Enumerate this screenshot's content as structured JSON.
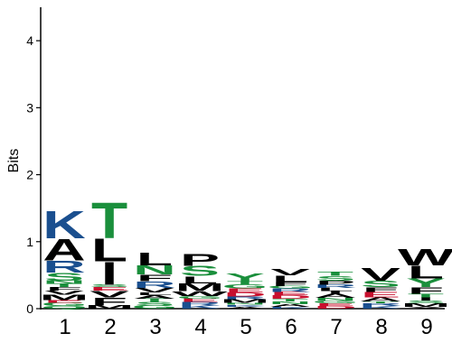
{
  "chart_data": {
    "type": "sequence-logo",
    "ylabel": "Bits",
    "ylim": [
      0,
      4.5
    ],
    "yticks": [
      0,
      1,
      2,
      3,
      4
    ],
    "positions": [
      "1",
      "2",
      "3",
      "4",
      "5",
      "6",
      "7",
      "8",
      "9"
    ],
    "colors": {
      "K": "#1a4f8f",
      "R": "#1a4f8f",
      "H": "#1a4f8f",
      "S": "#1a8f3c",
      "T": "#1a8f3c",
      "N": "#1a8f3c",
      "Q": "#1a8f3c",
      "G": "#1a8f3c",
      "C": "#1a8f3c",
      "Y": "#1a8f3c",
      "D": "#c8102e",
      "E": "#c8102e",
      "A": "#000000",
      "L": "#000000",
      "I": "#000000",
      "V": "#000000",
      "M": "#000000",
      "F": "#000000",
      "W": "#000000",
      "P": "#000000"
    },
    "stacks": [
      [
        {
          "letter": "Q",
          "bits": 0.04
        },
        {
          "letter": "G",
          "bits": 0.05
        },
        {
          "letter": "E",
          "bits": 0.04
        },
        {
          "letter": "M",
          "bits": 0.08
        },
        {
          "letter": "V",
          "bits": 0.06
        },
        {
          "letter": "F",
          "bits": 0.05
        },
        {
          "letter": "T",
          "bits": 0.05
        },
        {
          "letter": "N",
          "bits": 0.05
        },
        {
          "letter": "S",
          "bits": 0.12
        },
        {
          "letter": "R",
          "bits": 0.18
        },
        {
          "letter": "A",
          "bits": 0.33
        },
        {
          "letter": "K",
          "bits": 0.42
        }
      ],
      [
        {
          "letter": "M",
          "bits": 0.05
        },
        {
          "letter": "F",
          "bits": 0.12
        },
        {
          "letter": "V",
          "bits": 0.1
        },
        {
          "letter": "E",
          "bits": 0.05
        },
        {
          "letter": "S",
          "bits": 0.04
        },
        {
          "letter": "I",
          "bits": 0.35
        },
        {
          "letter": "L",
          "bits": 0.35
        },
        {
          "letter": "T",
          "bits": 0.55
        }
      ],
      [
        {
          "letter": "G",
          "bits": 0.05
        },
        {
          "letter": "S",
          "bits": 0.05
        },
        {
          "letter": "T",
          "bits": 0.05
        },
        {
          "letter": "A",
          "bits": 0.05
        },
        {
          "letter": "L",
          "bits": 0.04
        },
        {
          "letter": "V",
          "bits": 0.07
        },
        {
          "letter": "R",
          "bits": 0.1
        },
        {
          "letter": "F",
          "bits": 0.1
        },
        {
          "letter": "N",
          "bits": 0.14
        },
        {
          "letter": "L",
          "bits": 0.2
        }
      ],
      [
        {
          "letter": "K",
          "bits": 0.05
        },
        {
          "letter": "R",
          "bits": 0.05
        },
        {
          "letter": "E",
          "bits": 0.05
        },
        {
          "letter": "G",
          "bits": 0.04
        },
        {
          "letter": "W",
          "bits": 0.07
        },
        {
          "letter": "M",
          "bits": 0.12
        },
        {
          "letter": "L",
          "bits": 0.11
        },
        {
          "letter": "S",
          "bits": 0.15
        },
        {
          "letter": "P",
          "bits": 0.18
        }
      ],
      [
        {
          "letter": "A",
          "bits": 0.03
        },
        {
          "letter": "K",
          "bits": 0.03
        },
        {
          "letter": "N",
          "bits": 0.03
        },
        {
          "letter": "M",
          "bits": 0.05
        },
        {
          "letter": "R",
          "bits": 0.04
        },
        {
          "letter": "D",
          "bits": 0.06
        },
        {
          "letter": "E",
          "bits": 0.06
        },
        {
          "letter": "G",
          "bits": 0.06
        },
        {
          "letter": "T",
          "bits": 0.05
        },
        {
          "letter": "Y",
          "bits": 0.12
        }
      ],
      [
        {
          "letter": "K",
          "bits": 0.03
        },
        {
          "letter": "A",
          "bits": 0.04
        },
        {
          "letter": "N",
          "bits": 0.04
        },
        {
          "letter": "T",
          "bits": 0.04
        },
        {
          "letter": "D",
          "bits": 0.05
        },
        {
          "letter": "E",
          "bits": 0.05
        },
        {
          "letter": "R",
          "bits": 0.05
        },
        {
          "letter": "G",
          "bits": 0.04
        },
        {
          "letter": "F",
          "bits": 0.06
        },
        {
          "letter": "L",
          "bits": 0.1
        },
        {
          "letter": "V",
          "bits": 0.1
        }
      ],
      [
        {
          "letter": "D",
          "bits": 0.04
        },
        {
          "letter": "E",
          "bits": 0.04
        },
        {
          "letter": "G",
          "bits": 0.04
        },
        {
          "letter": "N",
          "bits": 0.04
        },
        {
          "letter": "A",
          "bits": 0.06
        },
        {
          "letter": "I",
          "bits": 0.04
        },
        {
          "letter": "L",
          "bits": 0.05
        },
        {
          "letter": "R",
          "bits": 0.05
        },
        {
          "letter": "P",
          "bits": 0.06
        },
        {
          "letter": "S",
          "bits": 0.07
        },
        {
          "letter": "T",
          "bits": 0.06
        }
      ],
      [
        {
          "letter": "K",
          "bits": 0.04
        },
        {
          "letter": "R",
          "bits": 0.04
        },
        {
          "letter": "T",
          "bits": 0.03
        },
        {
          "letter": "A",
          "bits": 0.06
        },
        {
          "letter": "E",
          "bits": 0.08
        },
        {
          "letter": "F",
          "bits": 0.07
        },
        {
          "letter": "S",
          "bits": 0.1
        },
        {
          "letter": "V",
          "bits": 0.2
        }
      ],
      [
        {
          "letter": "X",
          "bits": 0.03
        },
        {
          "letter": "M",
          "bits": 0.05
        },
        {
          "letter": "S",
          "bits": 0.04
        },
        {
          "letter": "I",
          "bits": 0.05
        },
        {
          "letter": "T",
          "bits": 0.05
        },
        {
          "letter": "F",
          "bits": 0.1
        },
        {
          "letter": "Y",
          "bits": 0.13
        },
        {
          "letter": "L",
          "bits": 0.2
        },
        {
          "letter": "W",
          "bits": 0.25
        }
      ]
    ]
  }
}
